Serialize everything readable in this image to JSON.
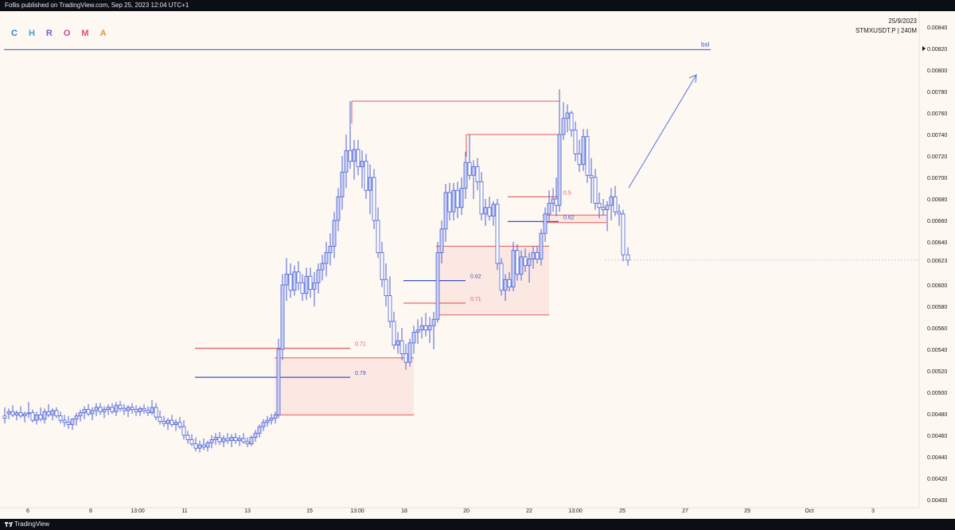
{
  "header": {
    "published_text": "Follis published on TradingView.com, Sep 25, 2023 12:04 UTC+1"
  },
  "footer": {
    "brand": "TradingView"
  },
  "branding": {
    "letters": [
      {
        "ch": "C",
        "color": "#2f7fd6"
      },
      {
        "ch": "H",
        "color": "#3aa3d6"
      },
      {
        "ch": "R",
        "color": "#7b5bd1"
      },
      {
        "ch": "O",
        "color": "#c74a9a"
      },
      {
        "ch": "M",
        "color": "#e0506a"
      },
      {
        "ch": "A",
        "color": "#e8913a"
      }
    ]
  },
  "chart_info": {
    "date": "25/9/2023",
    "symbol_line": "STMXUSDT.P | 240M"
  },
  "colors": {
    "candle_up": "#ffffff",
    "candle_border": "#4c5fd6",
    "red_line": "#e45a5a",
    "blue_line": "#3b55c8",
    "zone_fill": "#fbe3e0",
    "background": "#fdf8f1"
  },
  "chart_data": {
    "type": "candlestick",
    "title": "",
    "ylim": [
      0.004,
      0.0085
    ],
    "y_ticks": [
      "0.00840",
      "0.00820",
      "0.00800",
      "0.00780",
      "0.00760",
      "0.00740",
      "0.00720",
      "0.00700",
      "0.00680",
      "0.00660",
      "0.00640",
      "0.00623",
      "0.00600",
      "0.00580",
      "0.00560",
      "0.00540",
      "0.00520",
      "0.00500",
      "0.00480",
      "0.00460",
      "0.00440",
      "0.00420",
      "0.00400"
    ],
    "current_price_label": "0.00623",
    "x_ticks": [
      {
        "label": "6",
        "x": 35
      },
      {
        "label": "8",
        "x": 114
      },
      {
        "label": "13:00",
        "x": 173
      },
      {
        "label": "11",
        "x": 232
      },
      {
        "label": "13",
        "x": 311
      },
      {
        "label": "15",
        "x": 389
      },
      {
        "label": "13:00",
        "x": 449
      },
      {
        "label": "18",
        "x": 508
      },
      {
        "label": "20",
        "x": 586
      },
      {
        "label": "22",
        "x": 665
      },
      {
        "label": "13:00",
        "x": 723
      },
      {
        "label": "25",
        "x": 782
      },
      {
        "label": "27",
        "x": 861
      },
      {
        "label": "29",
        "x": 939
      },
      {
        "label": "Oct",
        "x": 1017
      },
      {
        "label": "3",
        "x": 1097
      }
    ],
    "levels": [
      {
        "label": "bsl",
        "price": 0.00819,
        "x1": 5,
        "x2": 893,
        "color": "#3b55c8"
      }
    ],
    "annotations": [
      {
        "label": "0.71",
        "price": 0.00541,
        "x1": 245,
        "x2": 440,
        "color": "#e45a5a"
      },
      {
        "label": "0.79",
        "price": 0.00514,
        "x1": 245,
        "x2": 440,
        "color": "#3b55c8"
      },
      {
        "label": "0.62",
        "price": 0.00604,
        "x1": 507,
        "x2": 585,
        "color": "#3b55c8"
      },
      {
        "label": "0.71",
        "price": 0.00583,
        "x1": 507,
        "x2": 585,
        "color": "#e45a5a"
      },
      {
        "label": "0.5",
        "price": 0.00682,
        "x1": 638,
        "x2": 702,
        "color": "#e45a5a"
      },
      {
        "label": "0.62",
        "price": 0.00659,
        "x1": 638,
        "x2": 702,
        "color": "#3b55c8"
      }
    ],
    "zones": [
      {
        "x1": 345,
        "x2": 520,
        "top": 0.00532,
        "bottom": 0.00479
      },
      {
        "x1": 548,
        "x2": 690,
        "top": 0.00636,
        "bottom": 0.00572
      },
      {
        "x1": 682,
        "x2": 762,
        "top": 0.00665,
        "bottom": 0.00658
      }
    ],
    "swing_lines": [
      {
        "x1": 442,
        "x2": 703,
        "price": 0.00771
      },
      {
        "x1": 586,
        "x2": 703,
        "price": 0.0074
      }
    ],
    "candles": [
      [
        6,
        0.00478,
        0.00486,
        0.00471,
        0.00476
      ],
      [
        11,
        0.0048,
        0.00485,
        0.00475,
        0.00482
      ],
      [
        16,
        0.00482,
        0.00488,
        0.00477,
        0.00479
      ],
      [
        21,
        0.00479,
        0.00483,
        0.00474,
        0.00481
      ],
      [
        26,
        0.00481,
        0.00487,
        0.00476,
        0.00478
      ],
      [
        31,
        0.00478,
        0.00482,
        0.00472,
        0.0048
      ],
      [
        36,
        0.0048,
        0.00491,
        0.00476,
        0.00481
      ],
      [
        41,
        0.00481,
        0.00484,
        0.00472,
        0.00474
      ],
      [
        46,
        0.00474,
        0.00482,
        0.0047,
        0.00479
      ],
      [
        51,
        0.00479,
        0.00486,
        0.00473,
        0.00475
      ],
      [
        56,
        0.00475,
        0.00485,
        0.00471,
        0.00482
      ],
      [
        61,
        0.00482,
        0.00489,
        0.00477,
        0.00479
      ],
      [
        66,
        0.00479,
        0.00485,
        0.00474,
        0.00483
      ],
      [
        71,
        0.00483,
        0.00486,
        0.00476,
        0.00478
      ],
      [
        76,
        0.00478,
        0.00482,
        0.00471,
        0.00474
      ],
      [
        81,
        0.00474,
        0.00479,
        0.00468,
        0.00472
      ],
      [
        86,
        0.00472,
        0.00478,
        0.00466,
        0.0047
      ],
      [
        91,
        0.0047,
        0.00476,
        0.00465,
        0.00475
      ],
      [
        96,
        0.00475,
        0.00481,
        0.00469,
        0.00478
      ],
      [
        101,
        0.00478,
        0.00484,
        0.00473,
        0.00481
      ],
      [
        106,
        0.00481,
        0.00487,
        0.00475,
        0.00484
      ],
      [
        111,
        0.00484,
        0.00489,
        0.00478,
        0.0048
      ],
      [
        116,
        0.0048,
        0.00486,
        0.00474,
        0.00483
      ],
      [
        121,
        0.00483,
        0.0049,
        0.00478,
        0.00486
      ],
      [
        126,
        0.00486,
        0.0049,
        0.00479,
        0.00482
      ],
      [
        131,
        0.00482,
        0.00487,
        0.00476,
        0.00484
      ],
      [
        136,
        0.00484,
        0.00489,
        0.00479,
        0.00486
      ],
      [
        141,
        0.00486,
        0.0049,
        0.0048,
        0.00482
      ],
      [
        146,
        0.00482,
        0.00491,
        0.00478,
        0.00488
      ],
      [
        151,
        0.00488,
        0.00492,
        0.00482,
        0.00485
      ],
      [
        156,
        0.00485,
        0.00489,
        0.00479,
        0.00483
      ],
      [
        161,
        0.00483,
        0.00488,
        0.00477,
        0.00486
      ],
      [
        166,
        0.00486,
        0.0049,
        0.0048,
        0.00484
      ],
      [
        171,
        0.00484,
        0.00488,
        0.00478,
        0.00482
      ],
      [
        176,
        0.00482,
        0.00487,
        0.00478,
        0.00485
      ],
      [
        181,
        0.00485,
        0.00489,
        0.0048,
        0.00483
      ],
      [
        186,
        0.00483,
        0.00487,
        0.00478,
        0.00481
      ],
      [
        191,
        0.00481,
        0.00493,
        0.00479,
        0.00486
      ],
      [
        196,
        0.00486,
        0.0049,
        0.00474,
        0.00477
      ],
      [
        201,
        0.00477,
        0.00483,
        0.0047,
        0.00473
      ],
      [
        206,
        0.00473,
        0.00478,
        0.00468,
        0.00471
      ],
      [
        211,
        0.00471,
        0.00476,
        0.00465,
        0.00474
      ],
      [
        216,
        0.00474,
        0.00479,
        0.00468,
        0.0047
      ],
      [
        221,
        0.0047,
        0.00475,
        0.00464,
        0.00472
      ],
      [
        226,
        0.00472,
        0.00477,
        0.00466,
        0.00468
      ],
      [
        231,
        0.00468,
        0.00474,
        0.00456,
        0.0046
      ],
      [
        236,
        0.0046,
        0.00464,
        0.00452,
        0.00456
      ],
      [
        241,
        0.00456,
        0.00461,
        0.0045,
        0.00452
      ],
      [
        246,
        0.00452,
        0.00458,
        0.00445,
        0.00448
      ],
      [
        251,
        0.00448,
        0.00455,
        0.00444,
        0.00451
      ],
      [
        256,
        0.00451,
        0.00457,
        0.00446,
        0.00449
      ],
      [
        261,
        0.00449,
        0.00455,
        0.00445,
        0.00453
      ],
      [
        266,
        0.00453,
        0.0046,
        0.00448,
        0.00456
      ],
      [
        271,
        0.00456,
        0.00462,
        0.00451,
        0.00458
      ],
      [
        276,
        0.00458,
        0.00463,
        0.00451,
        0.00454
      ],
      [
        281,
        0.00454,
        0.0046,
        0.00449,
        0.00457
      ],
      [
        286,
        0.00457,
        0.00462,
        0.00452,
        0.00455
      ],
      [
        291,
        0.00455,
        0.00461,
        0.00449,
        0.00458
      ],
      [
        296,
        0.00458,
        0.00462,
        0.00452,
        0.00455
      ],
      [
        301,
        0.00455,
        0.0046,
        0.0045,
        0.00457
      ],
      [
        306,
        0.00457,
        0.00462,
        0.00452,
        0.00454
      ],
      [
        311,
        0.00454,
        0.00458,
        0.00449,
        0.00452
      ],
      [
        316,
        0.00452,
        0.0046,
        0.0045,
        0.00458
      ],
      [
        321,
        0.00458,
        0.00465,
        0.00454,
        0.00462
      ],
      [
        326,
        0.00462,
        0.0047,
        0.00458,
        0.00468
      ],
      [
        331,
        0.00468,
        0.00475,
        0.00464,
        0.00472
      ],
      [
        336,
        0.00472,
        0.00478,
        0.00468,
        0.00474
      ],
      [
        341,
        0.00474,
        0.0048,
        0.0047,
        0.00476
      ],
      [
        346,
        0.00476,
        0.00482,
        0.00471,
        0.00479
      ],
      [
        350,
        0.00479,
        0.0055,
        0.00476,
        0.0054
      ],
      [
        355,
        0.0054,
        0.0061,
        0.0053,
        0.006
      ],
      [
        360,
        0.006,
        0.00625,
        0.00585,
        0.0061
      ],
      [
        365,
        0.0061,
        0.0062,
        0.00588,
        0.00595
      ],
      [
        370,
        0.00595,
        0.00618,
        0.0059,
        0.00612
      ],
      [
        375,
        0.00612,
        0.00622,
        0.00595,
        0.00602
      ],
      [
        380,
        0.00602,
        0.0061,
        0.00585,
        0.00592
      ],
      [
        385,
        0.00592,
        0.00616,
        0.00586,
        0.00608
      ],
      [
        390,
        0.00608,
        0.00616,
        0.00588,
        0.00596
      ],
      [
        395,
        0.00596,
        0.00612,
        0.0058,
        0.00602
      ],
      [
        400,
        0.00602,
        0.0062,
        0.00592,
        0.00614
      ],
      [
        405,
        0.00614,
        0.00628,
        0.00604,
        0.0062
      ],
      [
        410,
        0.0062,
        0.0064,
        0.00608,
        0.0063
      ],
      [
        415,
        0.0063,
        0.00648,
        0.00618,
        0.00636
      ],
      [
        420,
        0.00636,
        0.00668,
        0.00625,
        0.0066
      ],
      [
        425,
        0.0066,
        0.0069,
        0.0065,
        0.00682
      ],
      [
        430,
        0.00682,
        0.0072,
        0.0067,
        0.00705
      ],
      [
        435,
        0.00705,
        0.0074,
        0.0069,
        0.00725
      ],
      [
        440,
        0.00725,
        0.00771,
        0.00708,
        0.00715
      ],
      [
        445,
        0.00715,
        0.00735,
        0.00698,
        0.00726
      ],
      [
        450,
        0.00726,
        0.00735,
        0.00702,
        0.0071
      ],
      [
        455,
        0.0071,
        0.00725,
        0.0069,
        0.00715
      ],
      [
        460,
        0.00715,
        0.00722,
        0.0068,
        0.00688
      ],
      [
        465,
        0.00688,
        0.00712,
        0.00666,
        0.007
      ],
      [
        470,
        0.007,
        0.00708,
        0.00652,
        0.0066
      ],
      [
        475,
        0.0066,
        0.00672,
        0.00625,
        0.0063
      ],
      [
        480,
        0.0063,
        0.0064,
        0.00598,
        0.00605
      ],
      [
        485,
        0.00605,
        0.0062,
        0.0058,
        0.0059
      ],
      [
        490,
        0.0059,
        0.00608,
        0.0056,
        0.00566
      ],
      [
        495,
        0.00566,
        0.00575,
        0.0054,
        0.00544
      ],
      [
        500,
        0.00544,
        0.00556,
        0.00536,
        0.00548
      ],
      [
        505,
        0.00548,
        0.0056,
        0.0053,
        0.00536
      ],
      [
        510,
        0.00536,
        0.00545,
        0.00521,
        0.00528
      ],
      [
        515,
        0.00528,
        0.0055,
        0.00524,
        0.00546
      ],
      [
        520,
        0.00546,
        0.00562,
        0.00536,
        0.00556
      ],
      [
        525,
        0.00556,
        0.00568,
        0.00545,
        0.00558
      ],
      [
        530,
        0.00558,
        0.0057,
        0.0055,
        0.00562
      ],
      [
        535,
        0.00562,
        0.00574,
        0.00552,
        0.00558
      ],
      [
        540,
        0.00558,
        0.0057,
        0.00546,
        0.00562
      ],
      [
        545,
        0.00562,
        0.00575,
        0.0054,
        0.00568
      ],
      [
        550,
        0.00568,
        0.0064,
        0.00565,
        0.0063
      ],
      [
        555,
        0.0063,
        0.0066,
        0.0062,
        0.00652
      ],
      [
        560,
        0.00652,
        0.00694,
        0.0064,
        0.00686
      ],
      [
        565,
        0.00686,
        0.00695,
        0.0066,
        0.00668
      ],
      [
        570,
        0.00668,
        0.00695,
        0.0066,
        0.00688
      ],
      [
        575,
        0.00688,
        0.00696,
        0.00662,
        0.00672
      ],
      [
        580,
        0.00672,
        0.007,
        0.00665,
        0.0069
      ],
      [
        585,
        0.0069,
        0.00724,
        0.0068,
        0.00714
      ],
      [
        590,
        0.00714,
        0.0074,
        0.00698,
        0.00702
      ],
      [
        595,
        0.00702,
        0.00716,
        0.0068,
        0.0071
      ],
      [
        600,
        0.0071,
        0.00718,
        0.00688,
        0.00696
      ],
      [
        605,
        0.00696,
        0.00705,
        0.0066,
        0.00666
      ],
      [
        610,
        0.00666,
        0.0068,
        0.00655,
        0.00672
      ],
      [
        615,
        0.00672,
        0.00682,
        0.0066,
        0.00664
      ],
      [
        620,
        0.00664,
        0.00678,
        0.00655,
        0.00675
      ],
      [
        625,
        0.00675,
        0.0068,
        0.00614,
        0.0062
      ],
      [
        630,
        0.0062,
        0.00625,
        0.0059,
        0.00595
      ],
      [
        635,
        0.00595,
        0.0061,
        0.00585,
        0.00605
      ],
      [
        640,
        0.00605,
        0.00612,
        0.00594,
        0.00598
      ],
      [
        645,
        0.00598,
        0.0064,
        0.00594,
        0.00632
      ],
      [
        650,
        0.00632,
        0.00638,
        0.00604,
        0.0061
      ],
      [
        655,
        0.0061,
        0.00632,
        0.00604,
        0.00626
      ],
      [
        660,
        0.00626,
        0.00634,
        0.00612,
        0.00618
      ],
      [
        665,
        0.00618,
        0.0063,
        0.00602,
        0.00624
      ],
      [
        670,
        0.00624,
        0.00636,
        0.00615,
        0.0063
      ],
      [
        675,
        0.0063,
        0.00636,
        0.0062,
        0.00624
      ],
      [
        680,
        0.00624,
        0.00652,
        0.00618,
        0.00648
      ],
      [
        685,
        0.00648,
        0.00672,
        0.0064,
        0.00666
      ],
      [
        690,
        0.00666,
        0.00688,
        0.0066,
        0.00676
      ],
      [
        695,
        0.00676,
        0.0069,
        0.00668,
        0.0068
      ],
      [
        699,
        0.0068,
        0.007,
        0.00664,
        0.00674
      ],
      [
        703,
        0.00674,
        0.00782,
        0.00668,
        0.0074
      ],
      [
        708,
        0.0074,
        0.0077,
        0.00735,
        0.00755
      ],
      [
        713,
        0.00755,
        0.00768,
        0.00742,
        0.0076
      ],
      [
        718,
        0.0076,
        0.00762,
        0.00738,
        0.00744
      ],
      [
        723,
        0.00744,
        0.00752,
        0.00715,
        0.00722
      ],
      [
        728,
        0.00722,
        0.00735,
        0.00705,
        0.00712
      ],
      [
        733,
        0.00712,
        0.00745,
        0.00706,
        0.00738
      ],
      [
        738,
        0.00738,
        0.00745,
        0.00695,
        0.00702
      ],
      [
        743,
        0.00702,
        0.00718,
        0.00676,
        0.007
      ],
      [
        748,
        0.007,
        0.00708,
        0.0067,
        0.00676
      ],
      [
        753,
        0.00676,
        0.00686,
        0.00662,
        0.00672
      ],
      [
        758,
        0.00672,
        0.0068,
        0.00665,
        0.0067
      ],
      [
        763,
        0.0067,
        0.00678,
        0.0065,
        0.00674
      ],
      [
        768,
        0.00674,
        0.0069,
        0.0066,
        0.00682
      ],
      [
        773,
        0.00682,
        0.00692,
        0.00664,
        0.00668
      ],
      [
        778,
        0.00668,
        0.00675,
        0.00655,
        0.00666
      ],
      [
        783,
        0.00666,
        0.0067,
        0.00622,
        0.00628
      ],
      [
        789,
        0.00628,
        0.00635,
        0.00618,
        0.00623
      ]
    ]
  }
}
